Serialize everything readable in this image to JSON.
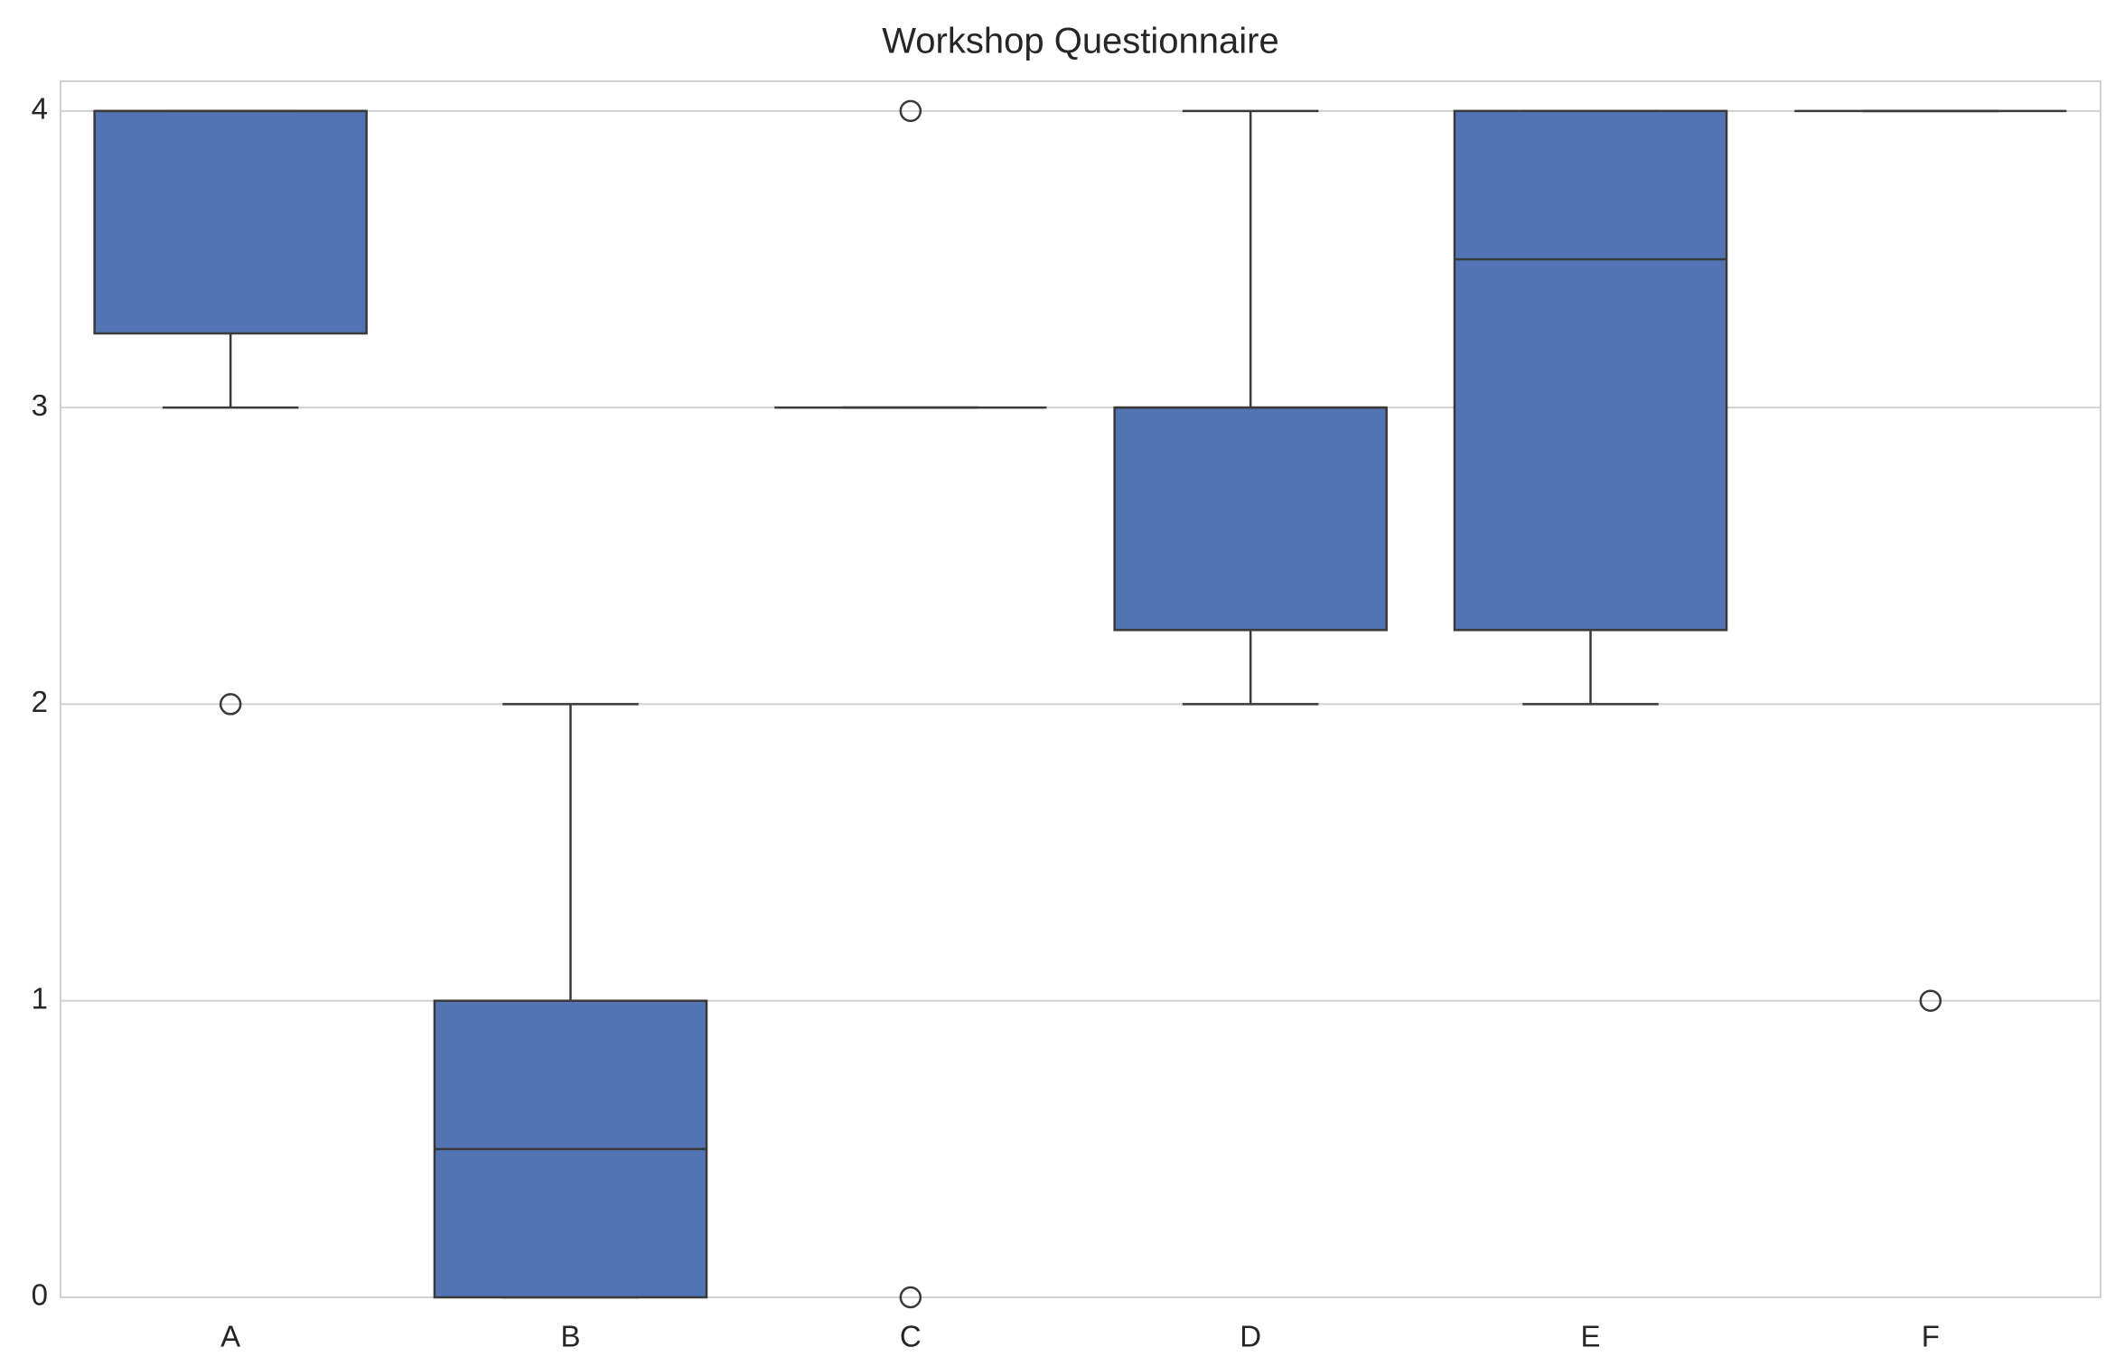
{
  "chart_data": {
    "type": "box",
    "title": "Workshop Questionnaire",
    "categories": [
      "A",
      "B",
      "C",
      "D",
      "E",
      "F"
    ],
    "boxes": [
      {
        "whislo": 3,
        "q1": 3.25,
        "med": 4,
        "q3": 4,
        "whishi": 4,
        "fliers": [
          2
        ]
      },
      {
        "whislo": 0,
        "q1": 0,
        "med": 0.5,
        "q3": 1,
        "whishi": 2,
        "fliers": []
      },
      {
        "whislo": 3,
        "q1": 3,
        "med": 3,
        "q3": 3,
        "whishi": 3,
        "fliers": [
          4,
          0
        ]
      },
      {
        "whislo": 2,
        "q1": 2.25,
        "med": 3,
        "q3": 3,
        "whishi": 4,
        "fliers": []
      },
      {
        "whislo": 2,
        "q1": 2.25,
        "med": 3.5,
        "q3": 4,
        "whishi": 4,
        "fliers": []
      },
      {
        "whislo": 4,
        "q1": 4,
        "med": 4,
        "q3": 4,
        "whishi": 4,
        "fliers": [
          1
        ]
      }
    ],
    "color": "#5274b4",
    "edge_color": "#3a3a3a",
    "ylim": [
      0,
      4.1
    ],
    "yticks": [
      0,
      1,
      2,
      3,
      4
    ],
    "grid": true
  }
}
